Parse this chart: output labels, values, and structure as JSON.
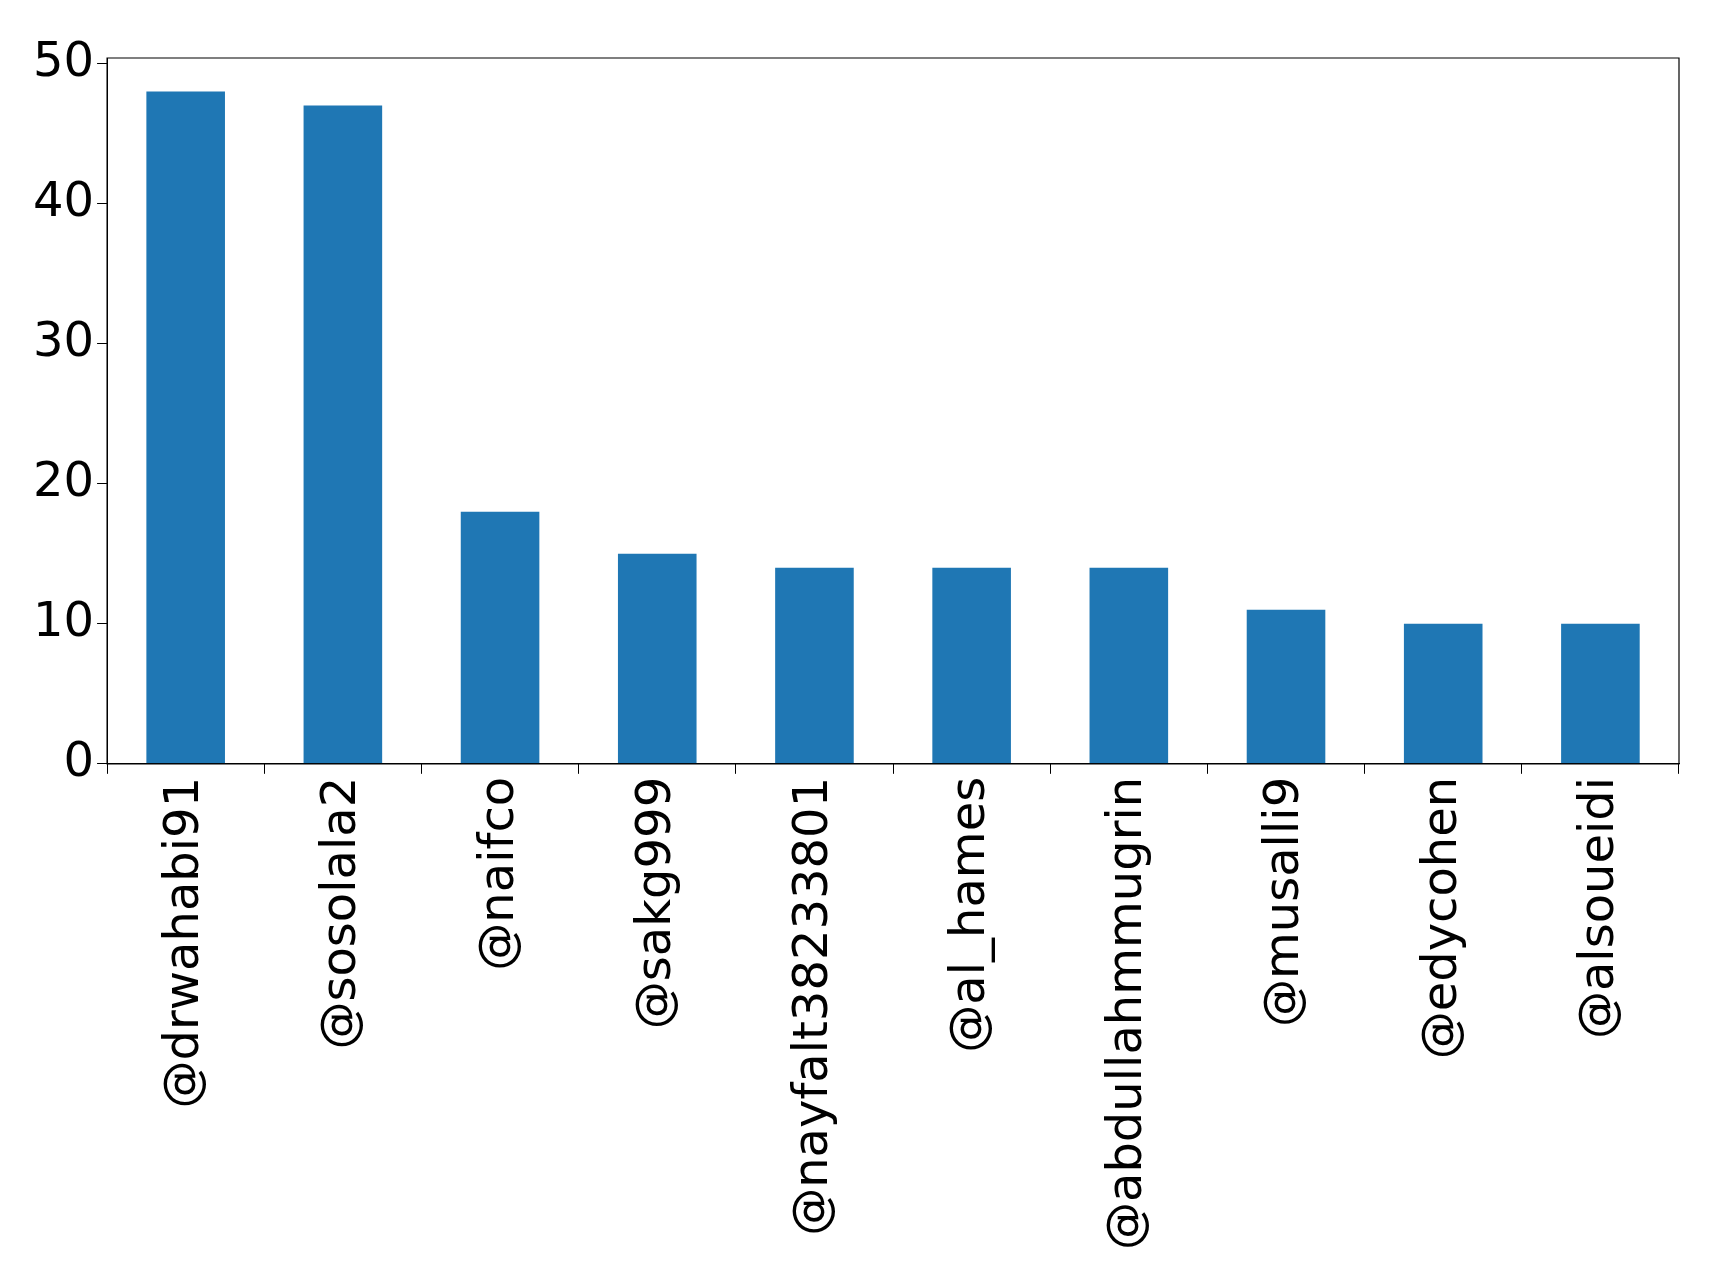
{
  "chart_data": {
    "type": "bar",
    "categories": [
      "@drwahabi91",
      "@sosolala2",
      "@naifco",
      "@sakg999",
      "@nayfalt38233801",
      "@al_hames",
      "@abdullahmmugrin",
      "@musalli9",
      "@edycohen",
      "@alsoueidi"
    ],
    "values": [
      48,
      47,
      18,
      15,
      14,
      14,
      14,
      11,
      10,
      10
    ],
    "color": "#1f77b4",
    "ylim": [
      0,
      50.4
    ],
    "yticks": [
      0,
      10,
      20,
      30,
      40,
      50
    ],
    "grid": false,
    "legend": false
  }
}
